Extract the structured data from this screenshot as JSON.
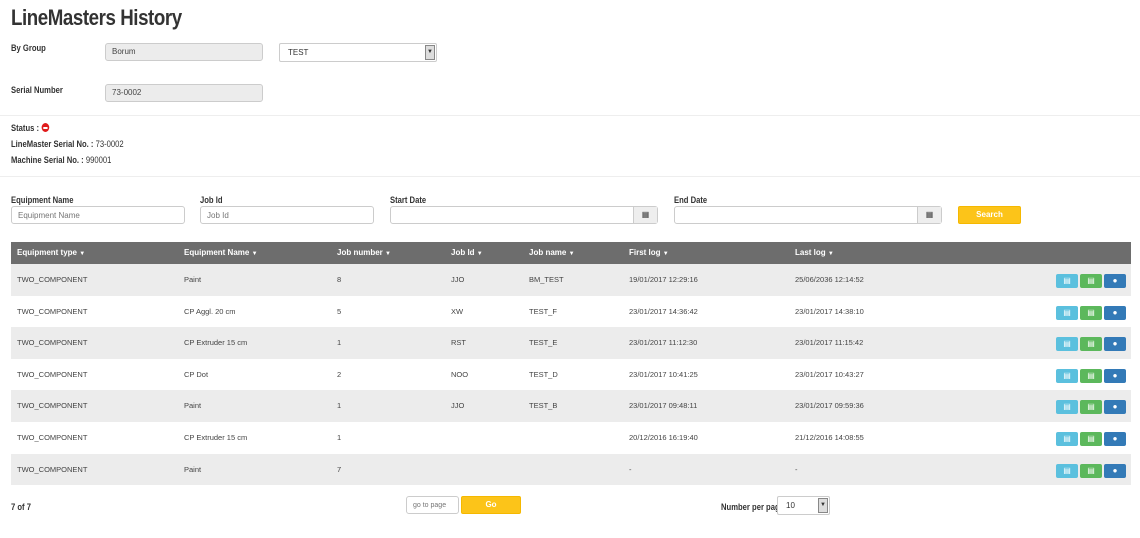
{
  "title": "LineMasters History",
  "filters": {
    "by_group_label": "By Group",
    "group_value": "Borum",
    "group_select": "TEST",
    "serial_label": "Serial Number",
    "serial_value": "73-0002"
  },
  "status": {
    "status_label": "Status :",
    "lm_serial_label": "LineMaster Serial No. :",
    "lm_serial_value": "73-0002",
    "machine_serial_label": "Machine Serial No. :",
    "machine_serial_value": "990001",
    "status_color": "#e01b1b"
  },
  "search": {
    "equip_label": "Equipment Name",
    "equip_placeholder": "Equipment Name",
    "jobid_label": "Job Id",
    "jobid_placeholder": "Job Id",
    "start_label": "Start Date",
    "end_label": "End Date",
    "search_button": "Search"
  },
  "table": {
    "headers": [
      "Equipment type",
      "Equipment Name",
      "Job number",
      "Job Id",
      "Job name",
      "First log",
      "Last log"
    ],
    "rows": [
      [
        "TWO_COMPONENT",
        "Paint",
        "8",
        "JJO",
        "BM_TEST",
        "19/01/2017 12:29:16",
        "25/06/2036 12:14:52"
      ],
      [
        "TWO_COMPONENT",
        "CP Aggl. 20 cm",
        "5",
        "XW",
        "TEST_F",
        "23/01/2017 14:36:42",
        "23/01/2017 14:38:10"
      ],
      [
        "TWO_COMPONENT",
        "CP Extruder 15 cm",
        "1",
        "RST",
        "TEST_E",
        "23/01/2017 11:12:30",
        "23/01/2017 11:15:42"
      ],
      [
        "TWO_COMPONENT",
        "CP Dot",
        "2",
        "NOO",
        "TEST_D",
        "23/01/2017 10:41:25",
        "23/01/2017 10:43:27"
      ],
      [
        "TWO_COMPONENT",
        "Paint",
        "1",
        "JJO",
        "TEST_B",
        "23/01/2017 09:48:11",
        "23/01/2017 09:59:36"
      ],
      [
        "TWO_COMPONENT",
        "CP Extruder 15 cm",
        "1",
        "",
        "",
        "20/12/2016 16:19:40",
        "21/12/2016 14:08:55"
      ],
      [
        "TWO_COMPONENT",
        "Paint",
        "7",
        "",
        "",
        "-",
        "-"
      ]
    ],
    "action_colors": {
      "pdf": "#5bc0de",
      "excel": "#5cb85c",
      "map": "#337ab7"
    }
  },
  "pagination": {
    "count": "7 of 7",
    "goto_placeholder": "go to page",
    "go_button": "Go",
    "per_page_label": "Number per page",
    "per_page_value": "10"
  }
}
